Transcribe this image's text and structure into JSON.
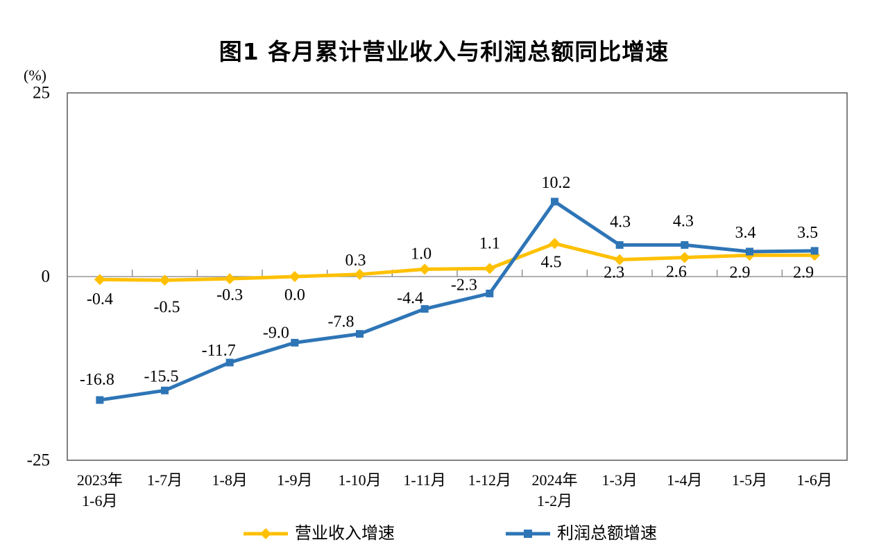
{
  "chart_data": {
    "type": "line",
    "title": "图1  各月累计营业收入与利润总额同比增速",
    "y_axis": {
      "unit": "(%)",
      "tick_labels": [
        "25",
        "0",
        "-25"
      ],
      "tick_values": [
        25,
        0,
        -25
      ],
      "min": -25,
      "max": 25,
      "grid": false
    },
    "categories": [
      [
        "2023年",
        "1-6月"
      ],
      [
        "1-7月"
      ],
      [
        "1-8月"
      ],
      [
        "1-9月"
      ],
      [
        "1-10月"
      ],
      [
        "1-11月"
      ],
      [
        "1-12月"
      ],
      [
        "2024年",
        "1-2月"
      ],
      [
        "1-3月"
      ],
      [
        "1-4月"
      ],
      [
        "1-5月"
      ],
      [
        "1-6月"
      ]
    ],
    "series": [
      {
        "name": "营业收入增速",
        "color": "#FFC000",
        "marker": "diamond",
        "values": [
          -0.4,
          -0.5,
          -0.3,
          0.0,
          0.3,
          1.0,
          1.1,
          4.5,
          2.3,
          2.6,
          2.9,
          2.9
        ],
        "labels": [
          "-0.4",
          "-0.5",
          "-0.3",
          "0.0",
          "0.3",
          "1.0",
          "1.1",
          "4.5",
          "2.3",
          "2.6",
          "2.9",
          "2.9"
        ]
      },
      {
        "name": "利润总额增速",
        "color": "#2E75B6",
        "marker": "square",
        "values": [
          -16.8,
          -15.5,
          -11.7,
          -9.0,
          -7.8,
          -4.4,
          -2.3,
          10.2,
          4.3,
          4.3,
          3.4,
          3.5
        ],
        "labels": [
          "-16.8",
          "-15.5",
          "-11.7",
          "-9.0",
          "-7.8",
          "-4.4",
          "-2.3",
          "10.2",
          "4.3",
          "4.3",
          "3.4",
          "3.5"
        ]
      }
    ],
    "legend_position": "bottom",
    "axis_color": "#595959",
    "zero_line_color": "#808080",
    "text_color": "#000000"
  }
}
